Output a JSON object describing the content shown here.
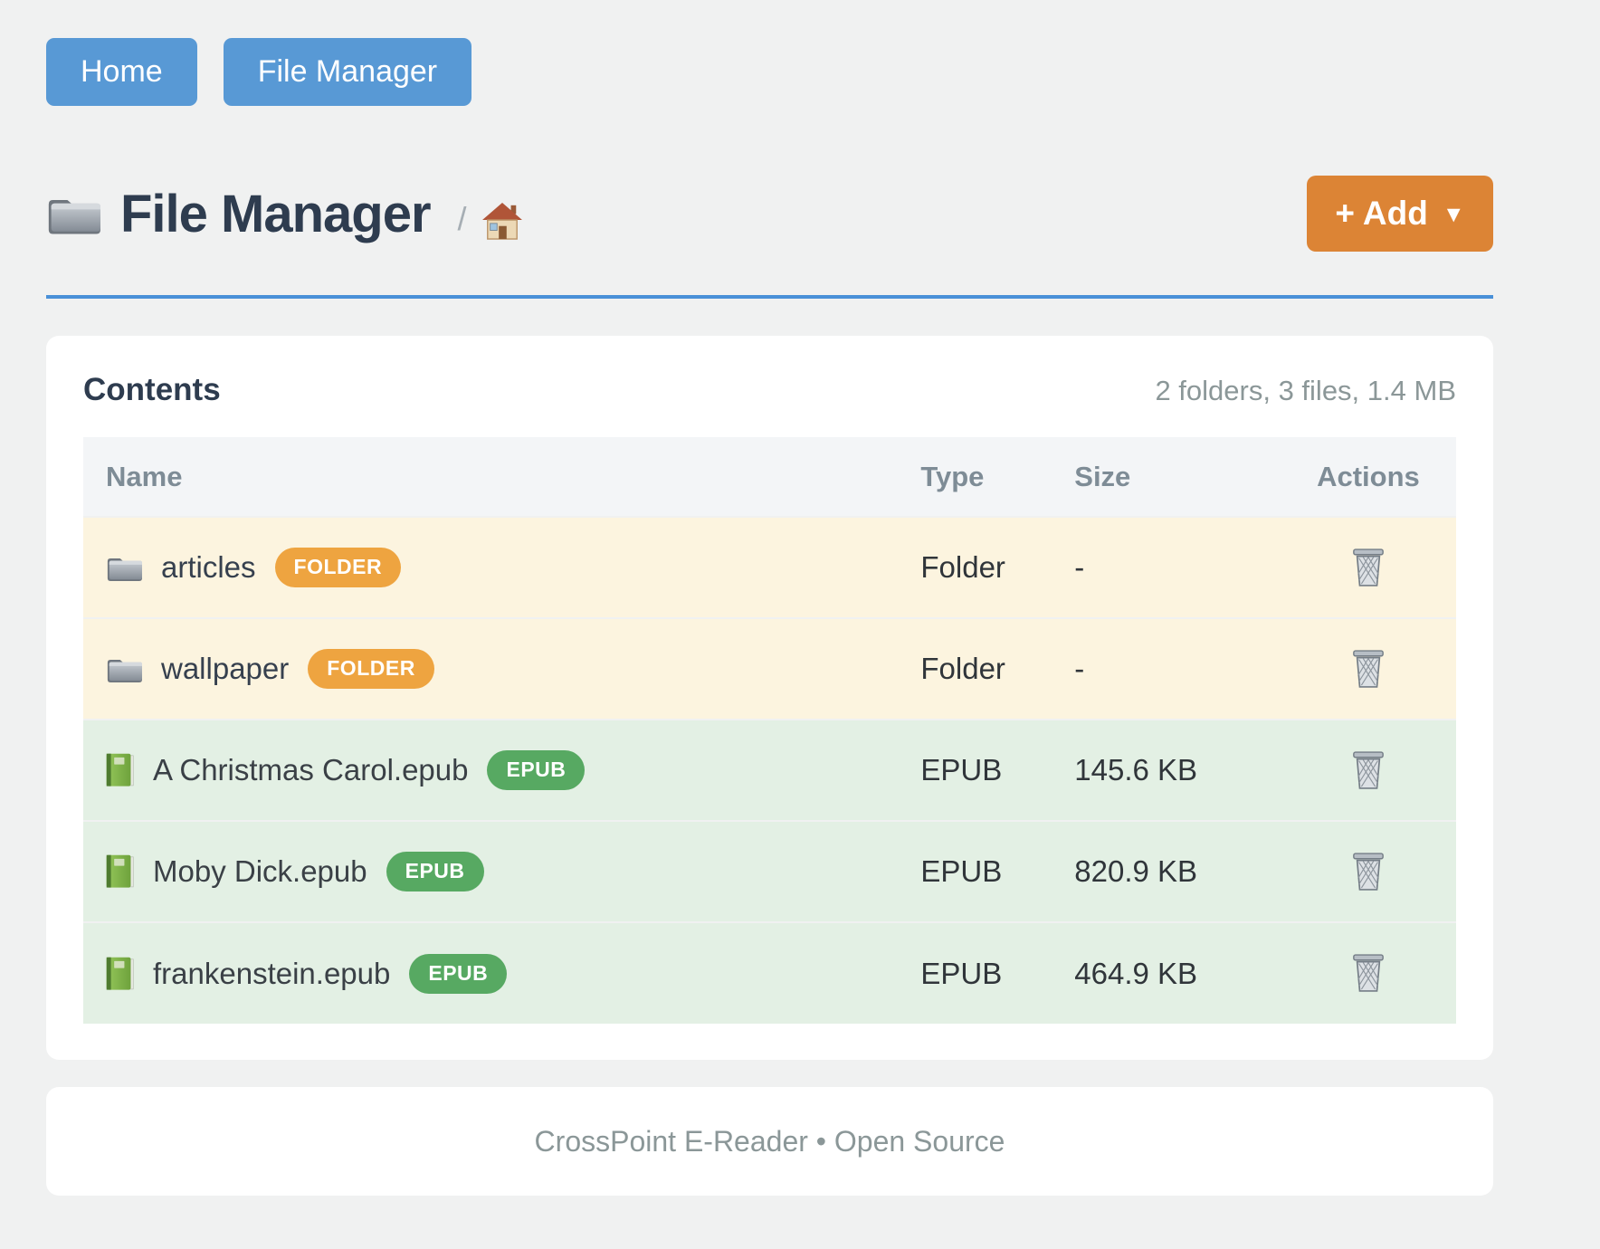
{
  "nav": {
    "home_label": "Home",
    "file_manager_label": "File Manager"
  },
  "header": {
    "title": "File Manager",
    "breadcrumb_separator": "/",
    "add_label": "+ Add",
    "add_caret": "▼"
  },
  "panel": {
    "title": "Contents",
    "summary": "2 folders, 3 files, 1.4 MB"
  },
  "table": {
    "columns": [
      "Name",
      "Type",
      "Size",
      "Actions"
    ],
    "rows": [
      {
        "name": "articles",
        "badge": "FOLDER",
        "type": "Folder",
        "size": "-",
        "kind": "folder"
      },
      {
        "name": "wallpaper",
        "badge": "FOLDER",
        "type": "Folder",
        "size": "-",
        "kind": "folder"
      },
      {
        "name": "A Christmas Carol.epub",
        "badge": "EPUB",
        "type": "EPUB",
        "size": "145.6 KB",
        "kind": "epub"
      },
      {
        "name": "Moby Dick.epub",
        "badge": "EPUB",
        "type": "EPUB",
        "size": "820.9 KB",
        "kind": "epub"
      },
      {
        "name": "frankenstein.epub",
        "badge": "EPUB",
        "type": "EPUB",
        "size": "464.9 KB",
        "kind": "epub"
      }
    ]
  },
  "footer": {
    "text": "CrossPoint E-Reader • Open Source"
  },
  "colors": {
    "nav_button": "#5899d5",
    "accent_rule": "#4a90d8",
    "add_button": "#dc8435",
    "folder_badge": "#eea440",
    "epub_badge": "#57a962",
    "folder_row_bg": "#fcf4df",
    "epub_row_bg": "#e3f0e4"
  }
}
